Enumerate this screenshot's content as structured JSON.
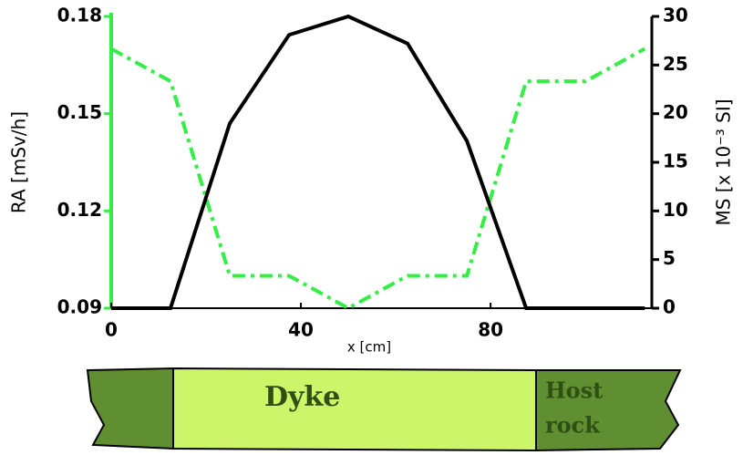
{
  "chart_data": {
    "type": "line",
    "xlabel": "x [cm]",
    "ylabel": "RA [mSv/h]",
    "y2label": "MS [x 10⁻³ SI]",
    "x": [
      0,
      12.5,
      25,
      37.5,
      50,
      62.5,
      75,
      87.5,
      100,
      112.5
    ],
    "series": [
      {
        "color": "#33ee44",
        "axis": "y",
        "values": [
          0.17,
          0.16,
          0.1,
          0.1,
          0.09,
          0.1,
          0.1,
          0.16,
          0.16,
          0.17
        ]
      },
      {
        "color": "#000000",
        "axis": "y2",
        "values": [
          0,
          0,
          19,
          28.1,
          30,
          27.2,
          17.2,
          0,
          0,
          0
        ]
      }
    ],
    "xlim": [
      0,
      114
    ],
    "xticks": [
      0,
      40,
      80
    ],
    "ylim": [
      0.09,
      0.18
    ],
    "yticks": [
      0.09,
      0.12,
      0.15,
      0.18
    ],
    "y2lim": [
      0,
      30
    ],
    "y2ticks": [
      0,
      5,
      10,
      15,
      20,
      25,
      30
    ],
    "annotations": [
      "Dyke",
      "Host",
      "rock"
    ]
  }
}
